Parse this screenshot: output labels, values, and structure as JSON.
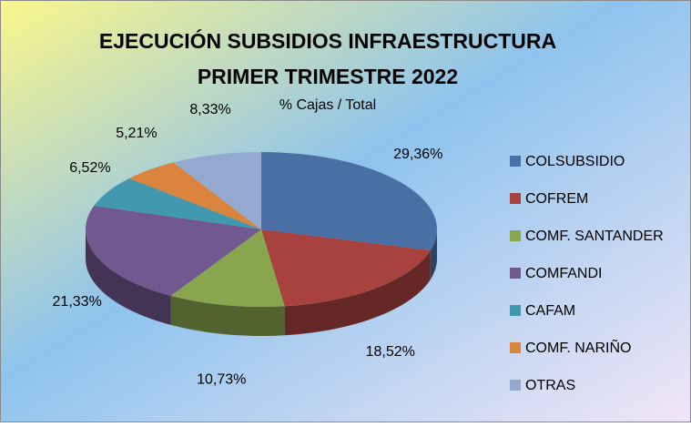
{
  "chart_data": {
    "type": "pie",
    "title": [
      "EJECUCIÓN SUBSIDIOS INFRAESTRUCTURA",
      "PRIMER TRIMESTRE 2022"
    ],
    "subtitle": "% Cajas / Total",
    "categories": [
      "COLSUBSIDIO",
      "COFREM",
      "COMF. SANTANDER",
      "COMFANDI",
      "CAFAM",
      "COMF. NARIÑO",
      "OTRAS"
    ],
    "values": [
      29.36,
      18.52,
      10.73,
      21.33,
      6.52,
      5.21,
      8.33
    ],
    "value_labels": [
      "29,36%",
      "18,52%",
      "10,73%",
      "21,33%",
      "6,52%",
      "5,21%",
      "8,33%"
    ],
    "colors": [
      "#4a6fa5",
      "#a8423f",
      "#89a54e",
      "#71588f",
      "#4198af",
      "#db843d",
      "#93a9cf"
    ],
    "legend": "right"
  }
}
